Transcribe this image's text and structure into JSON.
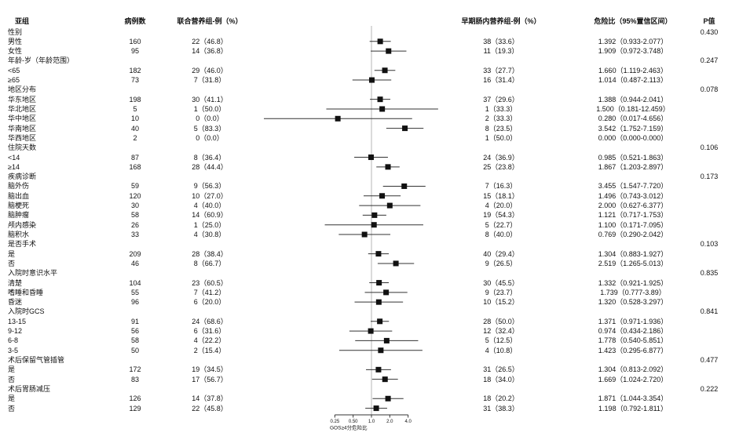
{
  "table": {
    "headers": {
      "subgroup": "亚组",
      "n": "病例数",
      "group1": "联合营养组-例（%）",
      "group2": "早期肠内营养组-例（%）",
      "hr": "危险比（95%置信区间）",
      "p": "P值"
    }
  },
  "chart_data": {
    "type": "scatter",
    "subtype": "forest-plot",
    "axis": {
      "scale": "log2",
      "ticks": [
        0.25,
        0.5,
        1.0,
        2.0,
        4.0
      ],
      "tick_labels": [
        "0.25",
        "0.50",
        "1.0",
        "2.0",
        "4.0"
      ],
      "label": "GOS≥4分危险比",
      "ref_line": 1.0
    },
    "marker_color": "#111111",
    "ci_line_color": "#333333",
    "ref_line_color": "#b5b5b5",
    "rows": [
      {
        "type": "category",
        "label": "性别",
        "p": "0.430"
      },
      {
        "type": "item",
        "label": "男性",
        "n": "160",
        "group1": "22（46.8）",
        "group2": "38（33.6）",
        "hr": 1.392,
        "ci": [
          0.933,
          2.077
        ],
        "hr_text": "1.392（0.933-2.077）"
      },
      {
        "type": "item",
        "label": "女性",
        "n": "95",
        "group1": "14（36.8）",
        "group2": "11（19.3）",
        "hr": 1.909,
        "ci": [
          0.972,
          3.748
        ],
        "hr_text": "1.909（0.972-3.748）"
      },
      {
        "type": "category",
        "label": "年龄-岁（年龄范围）",
        "p": "0.247"
      },
      {
        "type": "item",
        "label": "<65",
        "n": "182",
        "group1": "29（46.0）",
        "group2": "33（27.7）",
        "hr": 1.66,
        "ci": [
          1.119,
          2.463
        ],
        "hr_text": "1.660（1.119-2.463）"
      },
      {
        "type": "item",
        "label": "≥65",
        "n": "73",
        "group1": "7（31.8）",
        "group2": "16（31.4）",
        "hr": 1.014,
        "ci": [
          0.487,
          2.113
        ],
        "hr_text": "1.014（0.487-2.113）"
      },
      {
        "type": "category",
        "label": "地区分布",
        "p": "0.078"
      },
      {
        "type": "item",
        "label": "华东地区",
        "n": "198",
        "group1": "30（41.1）",
        "group2": "37（29.6）",
        "hr": 1.388,
        "ci": [
          0.944,
          2.041
        ],
        "hr_text": "1.388（0.944-2.041）"
      },
      {
        "type": "item",
        "label": "华北地区",
        "n": "5",
        "group1": "1（50.0）",
        "group2": "1（33.3）",
        "hr": 1.5,
        "ci": [
          0.181,
          12.459
        ],
        "hr_text": "1.500（0.181-12.459）"
      },
      {
        "type": "item",
        "label": "华中地区",
        "n": "10",
        "group1": "0（0.0）",
        "group2": "2（33.3）",
        "hr": 0.28,
        "ci": [
          0.017,
          4.656
        ],
        "hr_text": "0.280（0.017-4.656）"
      },
      {
        "type": "item",
        "label": "华南地区",
        "n": "40",
        "group1": "5（83.3）",
        "group2": "8（23.5）",
        "hr": 3.542,
        "ci": [
          1.752,
          7.159
        ],
        "hr_text": "3.542（1.752-7.159）"
      },
      {
        "type": "item",
        "label": "华西地区",
        "n": "2",
        "group1": "0（0.0）",
        "group2": "1（50.0）",
        "hr": 0,
        "ci": [
          0,
          0
        ],
        "hr_text": "0.000（0.000-0.000）"
      },
      {
        "type": "category",
        "label": "住院天数",
        "p": "0.106"
      },
      {
        "type": "item",
        "label": "<14",
        "n": "87",
        "group1": "8（36.4）",
        "group2": "24（36.9）",
        "hr": 0.985,
        "ci": [
          0.521,
          1.863
        ],
        "hr_text": "0.985（0.521-1.863）"
      },
      {
        "type": "item",
        "label": "≥14",
        "n": "168",
        "group1": "28（44.4）",
        "group2": "25（23.8）",
        "hr": 1.867,
        "ci": [
          1.203,
          2.897
        ],
        "hr_text": "1.867（1.203-2.897）"
      },
      {
        "type": "category",
        "label": "疾病诊断",
        "p": "0.173"
      },
      {
        "type": "item",
        "label": "脑外伤",
        "n": "59",
        "group1": "9（56.3）",
        "group2": "7（16.3）",
        "hr": 3.455,
        "ci": [
          1.547,
          7.72
        ],
        "hr_text": "3.455（1.547-7.720）"
      },
      {
        "type": "item",
        "label": "脑出血",
        "n": "120",
        "group1": "10（27.0）",
        "group2": "15（18.1）",
        "hr": 1.496,
        "ci": [
          0.743,
          3.012
        ],
        "hr_text": "1.496（0.743-3.012）"
      },
      {
        "type": "item",
        "label": "脑梗死",
        "n": "30",
        "group1": "4（40.0）",
        "group2": "4（20.0）",
        "hr": 2.0,
        "ci": [
          0.627,
          6.377
        ],
        "hr_text": "2.000（0.627-6.377）"
      },
      {
        "type": "item",
        "label": "脑肿瘤",
        "n": "58",
        "group1": "14（60.9）",
        "group2": "19（54.3）",
        "hr": 1.121,
        "ci": [
          0.717,
          1.753
        ],
        "hr_text": "1.121（0.717-1.753）"
      },
      {
        "type": "item",
        "label": "颅内感染",
        "n": "26",
        "group1": "1（25.0）",
        "group2": "5（22.7）",
        "hr": 1.1,
        "ci": [
          0.171,
          7.095
        ],
        "hr_text": "1.100（0.171-7.095）"
      },
      {
        "type": "item",
        "label": "脑积水",
        "n": "33",
        "group1": "4（30.8）",
        "group2": "8（40.0）",
        "hr": 0.769,
        "ci": [
          0.29,
          2.042
        ],
        "hr_text": "0.769（0.290-2.042）"
      },
      {
        "type": "category",
        "label": "是否手术",
        "p": "0.103"
      },
      {
        "type": "item",
        "label": "是",
        "n": "209",
        "group1": "28（38.4）",
        "group2": "40（29.4）",
        "hr": 1.304,
        "ci": [
          0.883,
          1.927
        ],
        "hr_text": "1.304（0.883-1.927）"
      },
      {
        "type": "item",
        "label": "否",
        "n": "46",
        "group1": "8（66.7）",
        "group2": "9（26.5）",
        "hr": 2.519,
        "ci": [
          1.265,
          5.013
        ],
        "hr_text": "2.519（1.265-5.013）"
      },
      {
        "type": "category",
        "label": "入院时意识水平",
        "p": "0.835"
      },
      {
        "type": "item",
        "label": "清楚",
        "n": "104",
        "group1": "23（60.5）",
        "group2": "30（45.5）",
        "hr": 1.332,
        "ci": [
          0.921,
          1.925
        ],
        "hr_text": "1.332（0.921-1.925）"
      },
      {
        "type": "item",
        "label": "嗜睡和昏睡",
        "n": "55",
        "group1": "7（41.2）",
        "group2": "9（23.7）",
        "hr": 1.739,
        "ci": [
          0.777,
          3.89
        ],
        "hr_text": "1.739（0.777-3.89）"
      },
      {
        "type": "item",
        "label": "昏迷",
        "n": "96",
        "group1": "6（20.0）",
        "group2": "10（15.2）",
        "hr": 1.32,
        "ci": [
          0.528,
          3.297
        ],
        "hr_text": "1.320（0.528-3.297）"
      },
      {
        "type": "category",
        "label": "入院时GCS",
        "p": "0.841"
      },
      {
        "type": "item",
        "label": "13-15",
        "n": "91",
        "group1": "24（68.6）",
        "group2": "28（50.0）",
        "hr": 1.371,
        "ci": [
          0.971,
          1.936
        ],
        "hr_text": "1.371（0.971-1.936）"
      },
      {
        "type": "item",
        "label": "9-12",
        "n": "56",
        "group1": "6（31.6）",
        "group2": "12（32.4）",
        "hr": 0.974,
        "ci": [
          0.434,
          2.186
        ],
        "hr_text": "0.974（0.434-2.186）"
      },
      {
        "type": "item",
        "label": "6-8",
        "n": "58",
        "group1": "4（22.2）",
        "group2": "5（12.5）",
        "hr": 1.778,
        "ci": [
          0.54,
          5.851
        ],
        "hr_text": "1.778（0.540-5.851）"
      },
      {
        "type": "item",
        "label": "3-5",
        "n": "50",
        "group1": "2（15.4）",
        "group2": "4（10.8）",
        "hr": 1.423,
        "ci": [
          0.295,
          6.877
        ],
        "hr_text": "1.423（0.295-6.877）"
      },
      {
        "type": "category",
        "label": "术后保留气管插管",
        "p": "0.477"
      },
      {
        "type": "item",
        "label": "是",
        "n": "172",
        "group1": "19（34.5）",
        "group2": "31（26.5）",
        "hr": 1.304,
        "ci": [
          0.813,
          2.092
        ],
        "hr_text": "1.304（0.813-2.092）"
      },
      {
        "type": "item",
        "label": "否",
        "n": "83",
        "group1": "17（56.7）",
        "group2": "18（34.0）",
        "hr": 1.669,
        "ci": [
          1.024,
          2.72
        ],
        "hr_text": "1.669（1.024-2.720）"
      },
      {
        "type": "category",
        "label": "术后胃肠减压",
        "p": "0.222"
      },
      {
        "type": "item",
        "label": "是",
        "n": "126",
        "group1": "14（37.8）",
        "group2": "18（20.2）",
        "hr": 1.871,
        "ci": [
          1.044,
          3.354
        ],
        "hr_text": "1.871（1.044-3.354）"
      },
      {
        "type": "item",
        "label": "否",
        "n": "129",
        "group1": "22（45.8）",
        "group2": "31（38.3）",
        "hr": 1.198,
        "ci": [
          0.792,
          1.811
        ],
        "hr_text": "1.198（0.792-1.811）"
      }
    ]
  }
}
